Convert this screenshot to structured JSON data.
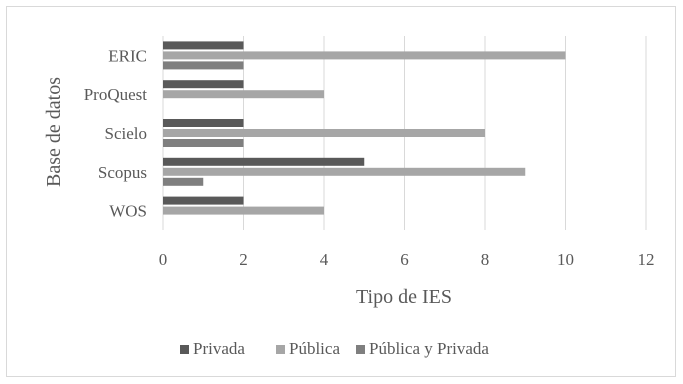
{
  "chart_data": {
    "type": "bar",
    "orientation": "horizontal",
    "title": "",
    "xlabel": "Tipo de IES",
    "ylabel": "Base de datos",
    "categories": [
      "ERIC",
      "ProQuest",
      "Scielo",
      "Scopus",
      "WOS"
    ],
    "series": [
      {
        "name": "Privada",
        "values": [
          2,
          2,
          2,
          5,
          2
        ],
        "color": "#595959"
      },
      {
        "name": "Pública",
        "values": [
          10,
          4,
          8,
          9,
          4
        ],
        "color": "#a6a6a6"
      },
      {
        "name": "Pública y Privada",
        "values": [
          2,
          0,
          2,
          1,
          0
        ],
        "color": "#7f7f7f"
      }
    ],
    "xlim": [
      0,
      12
    ],
    "xticks": [
      "0",
      "2",
      "4",
      "6",
      "8",
      "10",
      "12"
    ],
    "grid": "vertical",
    "legend_position": "bottom"
  }
}
